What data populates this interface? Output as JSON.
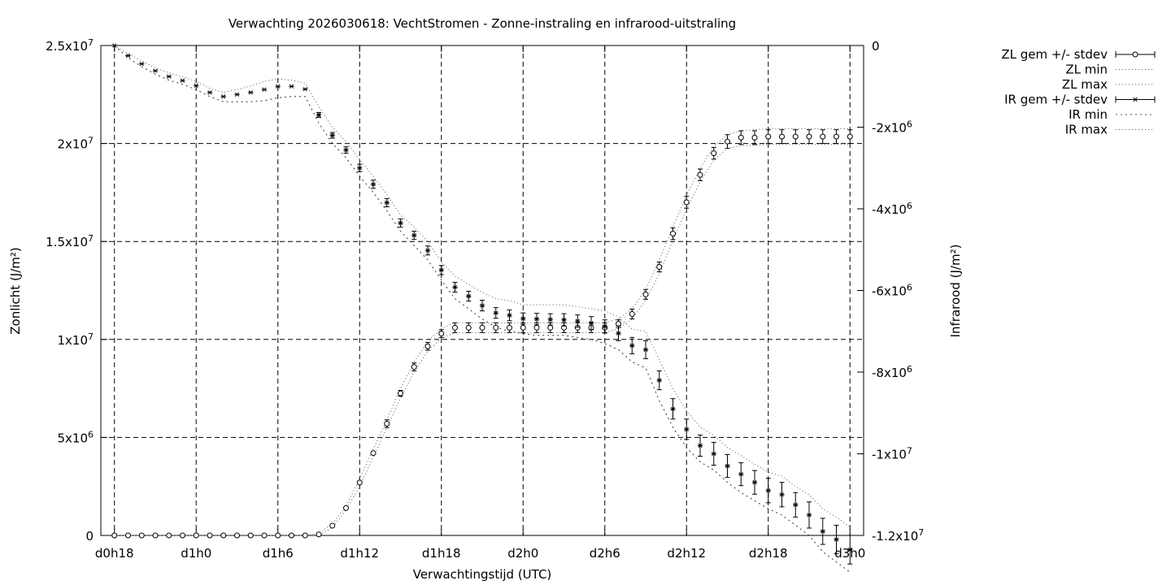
{
  "chart_data": {
    "type": "line",
    "title": "Verwachting 2026030618: VechtStromen - Zonne-instraling en infrarood-uitstraling",
    "xlabel": "Verwachtingstijd (UTC)",
    "ylabel": "Zonlicht (J/m²)",
    "y2label": "Infrarood (J/m²)",
    "xlim": [
      -1,
      55
    ],
    "xticks": [
      0,
      6,
      12,
      18,
      24,
      30,
      36,
      42,
      48,
      54
    ],
    "xtick_labels": [
      "d0h18",
      "d1h0",
      "d1h6",
      "d1h12",
      "d1h18",
      "d2h0",
      "d2h6",
      "d2h12",
      "d2h18",
      "d3h0"
    ],
    "ylim": [
      0,
      25000000
    ],
    "yticks": [
      0,
      5000000,
      10000000,
      15000000,
      20000000,
      25000000
    ],
    "ytick_labels": [
      {
        "m": "0",
        "e": ""
      },
      {
        "m": "5x10",
        "e": "6"
      },
      {
        "m": "1x10",
        "e": "7"
      },
      {
        "m": "1.5x10",
        "e": "7"
      },
      {
        "m": "2x10",
        "e": "7"
      },
      {
        "m": "2.5x10",
        "e": "7"
      }
    ],
    "y2lim": [
      -12000000,
      0
    ],
    "y2ticks": [
      0,
      -2000000,
      -4000000,
      -6000000,
      -8000000,
      -10000000,
      -12000000
    ],
    "y2tick_labels": [
      {
        "m": "0",
        "e": ""
      },
      {
        "m": "-2x10",
        "e": "6"
      },
      {
        "m": "-4x10",
        "e": "6"
      },
      {
        "m": "-6x10",
        "e": "6"
      },
      {
        "m": "-8x10",
        "e": "6"
      },
      {
        "m": "-1x10",
        "e": "7"
      },
      {
        "m": "-1.2x10",
        "e": "7"
      }
    ],
    "grid": true,
    "legend_position": "top-right outside",
    "legend": [
      "ZL gem +/- stdev",
      "ZL min",
      "ZL max",
      "IR gem +/- stdev",
      "IR min",
      "IR max"
    ],
    "x": [
      0,
      1,
      2,
      3,
      4,
      5,
      6,
      7,
      8,
      9,
      10,
      11,
      12,
      13,
      14,
      15,
      16,
      17,
      18,
      19,
      20,
      21,
      22,
      23,
      24,
      25,
      26,
      27,
      28,
      29,
      30,
      31,
      32,
      33,
      34,
      35,
      36,
      37,
      38,
      39,
      40,
      41,
      42,
      43,
      44,
      45,
      46,
      47,
      48,
      49,
      50,
      51,
      52,
      53,
      54
    ],
    "zl_mean": [
      0,
      0,
      0,
      0,
      0,
      0,
      0,
      0,
      0,
      0,
      0,
      0,
      0,
      0,
      0,
      50000,
      500000,
      1400000,
      2700000,
      4200000,
      5700000,
      7250000,
      8600000,
      9650000,
      10300000,
      10600000,
      10600000,
      10600000,
      10600000,
      10600000,
      10600000,
      10600000,
      10600000,
      10600000,
      10600000,
      10600000,
      10600000,
      10800000,
      11300000,
      12300000,
      13700000,
      15400000,
      17000000,
      18400000,
      19500000,
      20100000,
      20300000,
      20300000,
      20350000,
      20350000,
      20350000,
      20350000,
      20350000,
      20350000,
      20350000
    ],
    "zl_std": [
      0,
      0,
      0,
      0,
      0,
      0,
      0,
      0,
      0,
      0,
      0,
      0,
      0,
      0,
      0,
      0,
      0,
      0,
      0,
      0,
      200000,
      150000,
      200000,
      200000,
      200000,
      250000,
      250000,
      250000,
      250000,
      250000,
      250000,
      250000,
      250000,
      250000,
      250000,
      250000,
      250000,
      200000,
      250000,
      250000,
      250000,
      300000,
      300000,
      300000,
      300000,
      350000,
      350000,
      350000,
      350000,
      350000,
      350000,
      350000,
      350000,
      350000,
      350000
    ],
    "zl_min": [
      0,
      0,
      0,
      0,
      0,
      0,
      0,
      0,
      0,
      0,
      0,
      0,
      0,
      0,
      0,
      0,
      400000,
      1300000,
      2500000,
      4000000,
      5500000,
      7000000,
      8350000,
      9400000,
      10050000,
      10350000,
      10350000,
      10350000,
      10350000,
      10350000,
      10350000,
      10350000,
      10350000,
      10350000,
      10350000,
      10350000,
      10350000,
      10550000,
      11050000,
      12000000,
      13350000,
      15050000,
      16650000,
      18050000,
      19150000,
      19750000,
      19900000,
      19900000,
      19950000,
      19950000,
      19950000,
      19950000,
      19950000,
      19950000,
      19950000
    ],
    "zl_max": [
      0,
      0,
      0,
      0,
      0,
      0,
      0,
      0,
      0,
      0,
      0,
      0,
      0,
      0,
      0,
      100000,
      600000,
      1500000,
      2900000,
      4400000,
      5900000,
      7500000,
      8850000,
      9900000,
      10550000,
      10850000,
      10850000,
      10850000,
      10850000,
      10850000,
      10850000,
      10850000,
      10850000,
      10850000,
      10850000,
      10850000,
      10850000,
      11050000,
      11550000,
      12550000,
      14050000,
      15750000,
      17350000,
      18750000,
      19850000,
      20450000,
      20650000,
      20700000,
      20750000,
      20750000,
      20750000,
      20750000,
      20750000,
      20750000,
      20750000
    ],
    "ir_mean": [
      0,
      -250000,
      -450000,
      -620000,
      -760000,
      -860000,
      -980000,
      -1150000,
      -1250000,
      -1200000,
      -1150000,
      -1080000,
      -1000000,
      -1000000,
      -1070000,
      -1700000,
      -2200000,
      -2560000,
      -3000000,
      -3400000,
      -3850000,
      -4350000,
      -4650000,
      -5020000,
      -5500000,
      -5920000,
      -6140000,
      -6370000,
      -6550000,
      -6610000,
      -6690000,
      -6700000,
      -6710000,
      -6720000,
      -6750000,
      -6800000,
      -6880000,
      -7050000,
      -7350000,
      -7450000,
      -8200000,
      -8900000,
      -9400000,
      -9800000,
      -10000000,
      -10300000,
      -10500000,
      -10700000,
      -10900000,
      -11000000,
      -11250000,
      -11500000,
      -11900000,
      -12100000,
      -12350000
    ],
    "ir_std": [
      0,
      0,
      0,
      0,
      0,
      0,
      0,
      0,
      0,
      0,
      0,
      0,
      0,
      0,
      0,
      60000,
      70000,
      80000,
      90000,
      100000,
      100000,
      100000,
      100000,
      110000,
      110000,
      120000,
      120000,
      130000,
      130000,
      130000,
      140000,
      140000,
      140000,
      150000,
      150000,
      160000,
      160000,
      180000,
      200000,
      220000,
      230000,
      250000,
      250000,
      260000,
      280000,
      280000,
      280000,
      290000,
      300000,
      300000,
      300000,
      320000,
      320000,
      350000,
      350000
    ],
    "ir_min": [
      0,
      -300000,
      -520000,
      -700000,
      -850000,
      -950000,
      -1080000,
      -1250000,
      -1380000,
      -1380000,
      -1380000,
      -1350000,
      -1280000,
      -1250000,
      -1250000,
      -1900000,
      -2400000,
      -2750000,
      -3200000,
      -3600000,
      -4050000,
      -4550000,
      -4900000,
      -5250000,
      -5750000,
      -6200000,
      -6450000,
      -6700000,
      -6900000,
      -7000000,
      -7050000,
      -7100000,
      -7100000,
      -7100000,
      -7150000,
      -7200000,
      -7300000,
      -7450000,
      -7750000,
      -7900000,
      -8700000,
      -9350000,
      -9850000,
      -10200000,
      -10400000,
      -10700000,
      -10950000,
      -11150000,
      -11350000,
      -11500000,
      -11750000,
      -12000000,
      -12400000,
      -12650000,
      -12900000
    ],
    "ir_max": [
      0,
      -200000,
      -380000,
      -550000,
      -670000,
      -760000,
      -880000,
      -1050000,
      -1150000,
      -1080000,
      -990000,
      -880000,
      -820000,
      -850000,
      -920000,
      -1500000,
      -2000000,
      -2350000,
      -2800000,
      -3200000,
      -3650000,
      -4150000,
      -4450000,
      -4800000,
      -5300000,
      -5650000,
      -5850000,
      -6050000,
      -6200000,
      -6250000,
      -6350000,
      -6350000,
      -6350000,
      -6350000,
      -6400000,
      -6450000,
      -6500000,
      -6650000,
      -6950000,
      -7000000,
      -7700000,
      -8400000,
      -8950000,
      -9350000,
      -9550000,
      -9850000,
      -10050000,
      -10250000,
      -10450000,
      -10550000,
      -10800000,
      -11000000,
      -11350000,
      -11550000,
      -11800000
    ]
  }
}
